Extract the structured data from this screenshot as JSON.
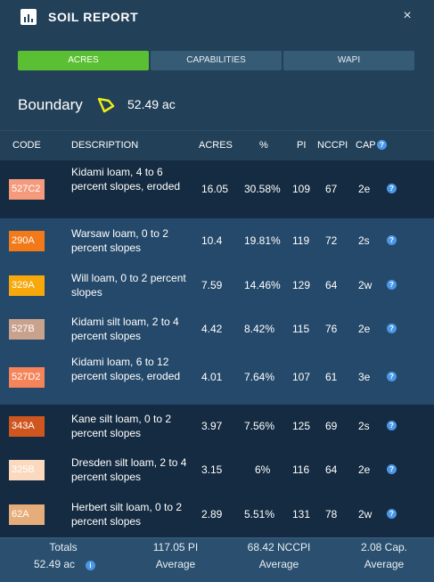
{
  "header": {
    "title": "SOIL REPORT",
    "close": "×"
  },
  "tabs": [
    {
      "label": "ACRES",
      "active": true
    },
    {
      "label": "CAPABILITIES",
      "active": false
    },
    {
      "label": "WAPI",
      "active": false
    }
  ],
  "boundary": {
    "label": "Boundary",
    "value": "52.49 ac"
  },
  "table": {
    "columns": [
      "CODE",
      "DESCRIPTION",
      "ACRES",
      "%",
      "PI",
      "NCCPI",
      "CAP"
    ],
    "rows": [
      {
        "code": "527C2",
        "color": "#f59a7c",
        "desc": "Kidami loam, 4 to 6 percent slopes, eroded",
        "acres": "16.05",
        "pct": "30.58%",
        "pi": "109",
        "nccpi": "67",
        "cap": "2e"
      },
      {
        "code": "290A",
        "color": "#f27a19",
        "desc": "Warsaw loam, 0 to 2 percent slopes",
        "acres": "10.4",
        "pct": "19.81%",
        "pi": "119",
        "nccpi": "72",
        "cap": "2s"
      },
      {
        "code": "329A",
        "color": "#f7a90c",
        "desc": "Will loam, 0 to 2 percent slopes",
        "acres": "7.59",
        "pct": "14.46%",
        "pi": "129",
        "nccpi": "64",
        "cap": "2w"
      },
      {
        "code": "527B",
        "color": "#c9a28e",
        "desc": "Kidami silt loam, 2 to 4 percent slopes",
        "acres": "4.42",
        "pct": "8.42%",
        "pi": "115",
        "nccpi": "76",
        "cap": "2e"
      },
      {
        "code": "527D2",
        "color": "#f6845b",
        "desc": "Kidami loam, 6 to 12 percent slopes, eroded",
        "acres": "4.01",
        "pct": "7.64%",
        "pi": "107",
        "nccpi": "61",
        "cap": "3e"
      },
      {
        "code": "343A",
        "color": "#d0561f",
        "desc": "Kane silt loam, 0 to 2 percent slopes",
        "acres": "3.97",
        "pct": "7.56%",
        "pi": "125",
        "nccpi": "69",
        "cap": "2s"
      },
      {
        "code": "325B",
        "color": "#fbd9bf",
        "desc": "Dresden silt loam, 2 to 4 percent slopes",
        "acres": "3.15",
        "pct": "6%",
        "pi": "116",
        "nccpi": "64",
        "cap": "2e"
      },
      {
        "code": "62A",
        "color": "#e5ad7a",
        "desc": "Herbert silt loam, 0 to 2 percent slopes",
        "acres": "2.89",
        "pct": "5.51%",
        "pi": "131",
        "nccpi": "78",
        "cap": "2w"
      }
    ]
  },
  "footer": {
    "totals_label": "Totals",
    "totals_value": "52.49 ac",
    "pi_value": "117.05 PI",
    "pi_label": "Average",
    "nccpi_value": "68.42 NCCPI",
    "nccpi_label": "Average",
    "cap_value": "2.08 Cap.",
    "cap_label": "Average"
  },
  "icons": {
    "app": "bar-chart-icon",
    "boundary": "field-boundary-icon",
    "help": "question-icon",
    "info": "info-icon"
  },
  "colors": {
    "panel": "#224058",
    "accent_tab": "#5bbf33",
    "help_icon": "#4a97e8",
    "boundary_shape": "#ecec1a"
  }
}
